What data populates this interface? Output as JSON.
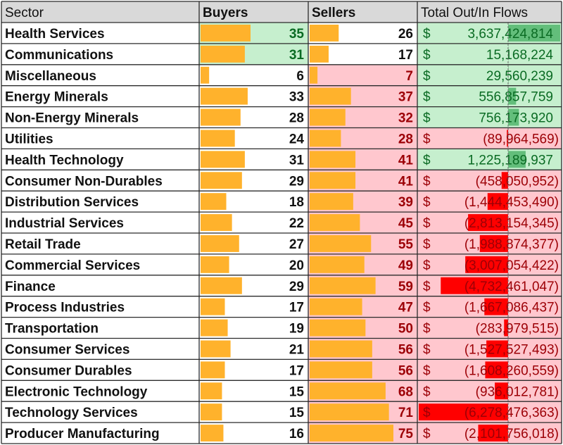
{
  "headers": {
    "sector": "Sector",
    "buyers": "Buyers",
    "sellers": "Sellers",
    "flows": "Total Out/In Flows"
  },
  "currency_symbol": "$",
  "colors": {
    "header_bg": "#d9d9d9",
    "bar": "#ffb22c",
    "green_fill": "#c6efce",
    "red_fill": "#ffc7ce",
    "green_text": "#0a6b23",
    "red_text": "#9c0006",
    "pos_bar": "#63be7b",
    "neg_bar": "#ff0000",
    "axis_line": "#6b6b6b"
  },
  "chart_data": {
    "type": "table",
    "columns": [
      "Sector",
      "Buyers",
      "Sellers",
      "Total Out/In Flows"
    ],
    "rows": [
      {
        "sector": "Health Services",
        "buyers": 35,
        "sellers": 26,
        "flow": 3637424814,
        "flow_label": "3,637,424,814"
      },
      {
        "sector": "Communications",
        "buyers": 31,
        "sellers": 17,
        "flow": 15168224,
        "flow_label": "15,168,224"
      },
      {
        "sector": "Miscellaneous",
        "buyers": 6,
        "sellers": 7,
        "flow": 29560239,
        "flow_label": "29,560,239"
      },
      {
        "sector": "Energy Minerals",
        "buyers": 33,
        "sellers": 37,
        "flow": 556857759,
        "flow_label": "556,857,759"
      },
      {
        "sector": "Non-Energy Minerals",
        "buyers": 28,
        "sellers": 32,
        "flow": 756173920,
        "flow_label": "756,173,920"
      },
      {
        "sector": "Utilities",
        "buyers": 24,
        "sellers": 28,
        "flow": -89964569,
        "flow_label": "(89,964,569)"
      },
      {
        "sector": "Health Technology",
        "buyers": 31,
        "sellers": 41,
        "flow": 1225189937,
        "flow_label": "1,225,189,937"
      },
      {
        "sector": "Consumer Non-Durables",
        "buyers": 29,
        "sellers": 41,
        "flow": -458050952,
        "flow_label": "(458,050,952)"
      },
      {
        "sector": "Distribution Services",
        "buyers": 18,
        "sellers": 39,
        "flow": -1444453490,
        "flow_label": "(1,444,453,490)"
      },
      {
        "sector": "Industrial Services",
        "buyers": 22,
        "sellers": 45,
        "flow": -2813154345,
        "flow_label": "(2,813,154,345)"
      },
      {
        "sector": "Retail Trade",
        "buyers": 27,
        "sellers": 55,
        "flow": -1988874377,
        "flow_label": "(1,988,874,377)"
      },
      {
        "sector": "Commercial Services",
        "buyers": 20,
        "sellers": 49,
        "flow": -3007054422,
        "flow_label": "(3,007,054,422)"
      },
      {
        "sector": "Finance",
        "buyers": 29,
        "sellers": 59,
        "flow": -4732461047,
        "flow_label": "(4,732,461,047)"
      },
      {
        "sector": "Process Industries",
        "buyers": 17,
        "sellers": 47,
        "flow": -1667086437,
        "flow_label": "(1,667,086,437)"
      },
      {
        "sector": "Transportation",
        "buyers": 19,
        "sellers": 50,
        "flow": -283979515,
        "flow_label": "(283,979,515)"
      },
      {
        "sector": "Consumer Services",
        "buyers": 21,
        "sellers": 56,
        "flow": -1527527493,
        "flow_label": "(1,527,527,493)"
      },
      {
        "sector": "Consumer Durables",
        "buyers": 17,
        "sellers": 56,
        "flow": -1608260559,
        "flow_label": "(1,608,260,559)"
      },
      {
        "sector": "Electronic Technology",
        "buyers": 15,
        "sellers": 68,
        "flow": -936012781,
        "flow_label": "(936,012,781)"
      },
      {
        "sector": "Technology Services",
        "buyers": 15,
        "sellers": 71,
        "flow": -6278476363,
        "flow_label": "(6,278,476,363)"
      },
      {
        "sector": "Producer Manufacturing",
        "buyers": 16,
        "sellers": 75,
        "flow": -2101756018,
        "flow_label": "(2,101,756,018)"
      }
    ]
  }
}
